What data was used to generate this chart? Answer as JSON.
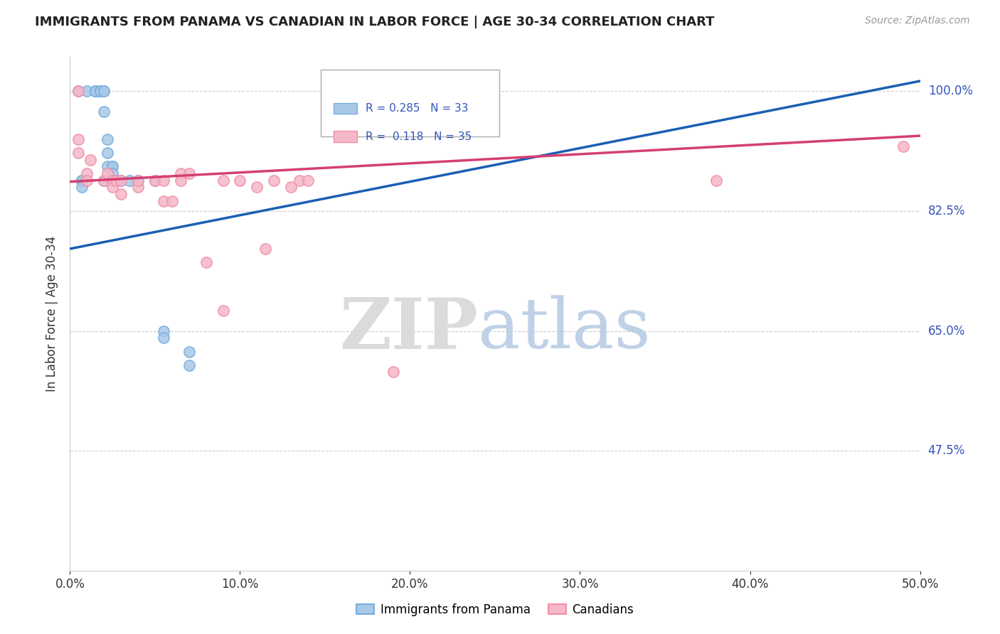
{
  "title": "IMMIGRANTS FROM PANAMA VS CANADIAN IN LABOR FORCE | AGE 30-34 CORRELATION CHART",
  "source": "Source: ZipAtlas.com",
  "ylabel": "In Labor Force | Age 30-34",
  "xlim": [
    0.0,
    0.5
  ],
  "ylim": [
    0.3,
    1.05
  ],
  "xtick_labels": [
    "0.0%",
    "10.0%",
    "20.0%",
    "30.0%",
    "40.0%",
    "50.0%"
  ],
  "xtick_values": [
    0.0,
    0.1,
    0.2,
    0.3,
    0.4,
    0.5
  ],
  "ytick_labels": [
    "47.5%",
    "65.0%",
    "82.5%",
    "100.0%"
  ],
  "ytick_values": [
    0.475,
    0.65,
    0.825,
    1.0
  ],
  "blue_color": "#a8c8e8",
  "pink_color": "#f5b8c8",
  "blue_edge_color": "#7aaedc",
  "pink_edge_color": "#f090a8",
  "blue_line_color": "#1a5fb4",
  "pink_line_color": "#d44070",
  "R_blue": 0.285,
  "N_blue": 33,
  "R_pink": 0.118,
  "N_pink": 35,
  "blue_line_y0": 0.77,
  "blue_line_y1": 1.015,
  "pink_line_y0": 0.868,
  "pink_line_y1": 0.935,
  "blue_points_x": [
    0.005,
    0.01,
    0.015,
    0.015,
    0.015,
    0.015,
    0.018,
    0.018,
    0.018,
    0.02,
    0.02,
    0.02,
    0.022,
    0.022,
    0.022,
    0.025,
    0.025,
    0.025,
    0.025,
    0.028,
    0.03,
    0.035,
    0.04,
    0.007,
    0.007,
    0.007,
    0.007,
    0.05,
    0.055,
    0.055,
    0.07,
    0.07,
    0.02
  ],
  "blue_points_y": [
    1.0,
    1.0,
    1.0,
    1.0,
    1.0,
    1.0,
    1.0,
    1.0,
    1.0,
    1.0,
    1.0,
    0.97,
    0.93,
    0.91,
    0.89,
    0.89,
    0.89,
    0.88,
    0.87,
    0.87,
    0.87,
    0.87,
    0.87,
    0.87,
    0.87,
    0.87,
    0.86,
    0.87,
    0.65,
    0.64,
    0.62,
    0.6,
    0.87
  ],
  "pink_points_x": [
    0.005,
    0.005,
    0.005,
    0.01,
    0.01,
    0.012,
    0.02,
    0.022,
    0.025,
    0.025,
    0.027,
    0.03,
    0.03,
    0.04,
    0.04,
    0.05,
    0.055,
    0.055,
    0.06,
    0.065,
    0.065,
    0.07,
    0.08,
    0.09,
    0.09,
    0.1,
    0.11,
    0.115,
    0.12,
    0.13,
    0.135,
    0.14,
    0.19,
    0.38,
    0.49
  ],
  "pink_points_y": [
    1.0,
    0.93,
    0.91,
    0.88,
    0.87,
    0.9,
    0.87,
    0.88,
    0.87,
    0.86,
    0.87,
    0.87,
    0.85,
    0.86,
    0.87,
    0.87,
    0.87,
    0.84,
    0.84,
    0.88,
    0.87,
    0.88,
    0.75,
    0.68,
    0.87,
    0.87,
    0.86,
    0.77,
    0.87,
    0.86,
    0.87,
    0.87,
    0.59,
    0.87,
    0.92
  ]
}
